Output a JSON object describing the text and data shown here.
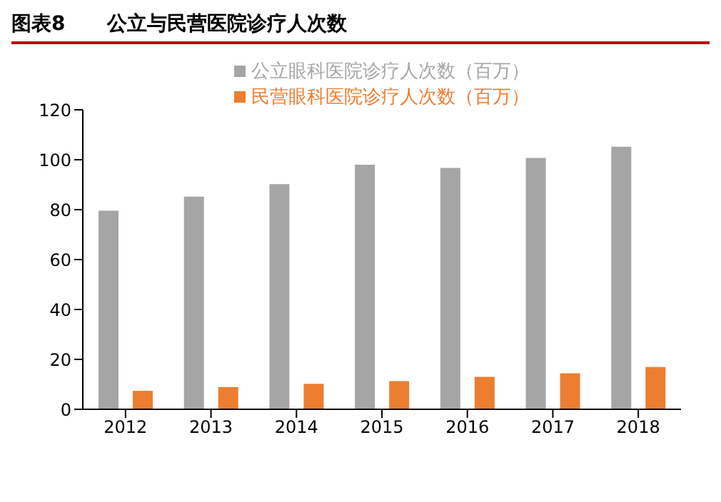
{
  "chart_data": {
    "type": "bar",
    "title": "图表8      公立与民营医院诊疗人次数",
    "categories": [
      "2012",
      "2013",
      "2014",
      "2015",
      "2016",
      "2017",
      "2018"
    ],
    "series": [
      {
        "name": "公立眼科医院诊疗人次数（百万）",
        "color": "#a5a5a5",
        "values": [
          79.6,
          85.2,
          90.2,
          98,
          96.7,
          100.7,
          105.2
        ]
      },
      {
        "name": "民营眼科医院诊疗人次数（百万）",
        "color": "#ed7d31",
        "values": [
          7.4,
          8.9,
          10.2,
          11.3,
          13,
          14.4,
          16.9
        ]
      }
    ],
    "ylim": [
      0,
      120
    ],
    "yticks": [
      0,
      20,
      40,
      60,
      80,
      100,
      120
    ],
    "grid": false,
    "legend": "top"
  }
}
